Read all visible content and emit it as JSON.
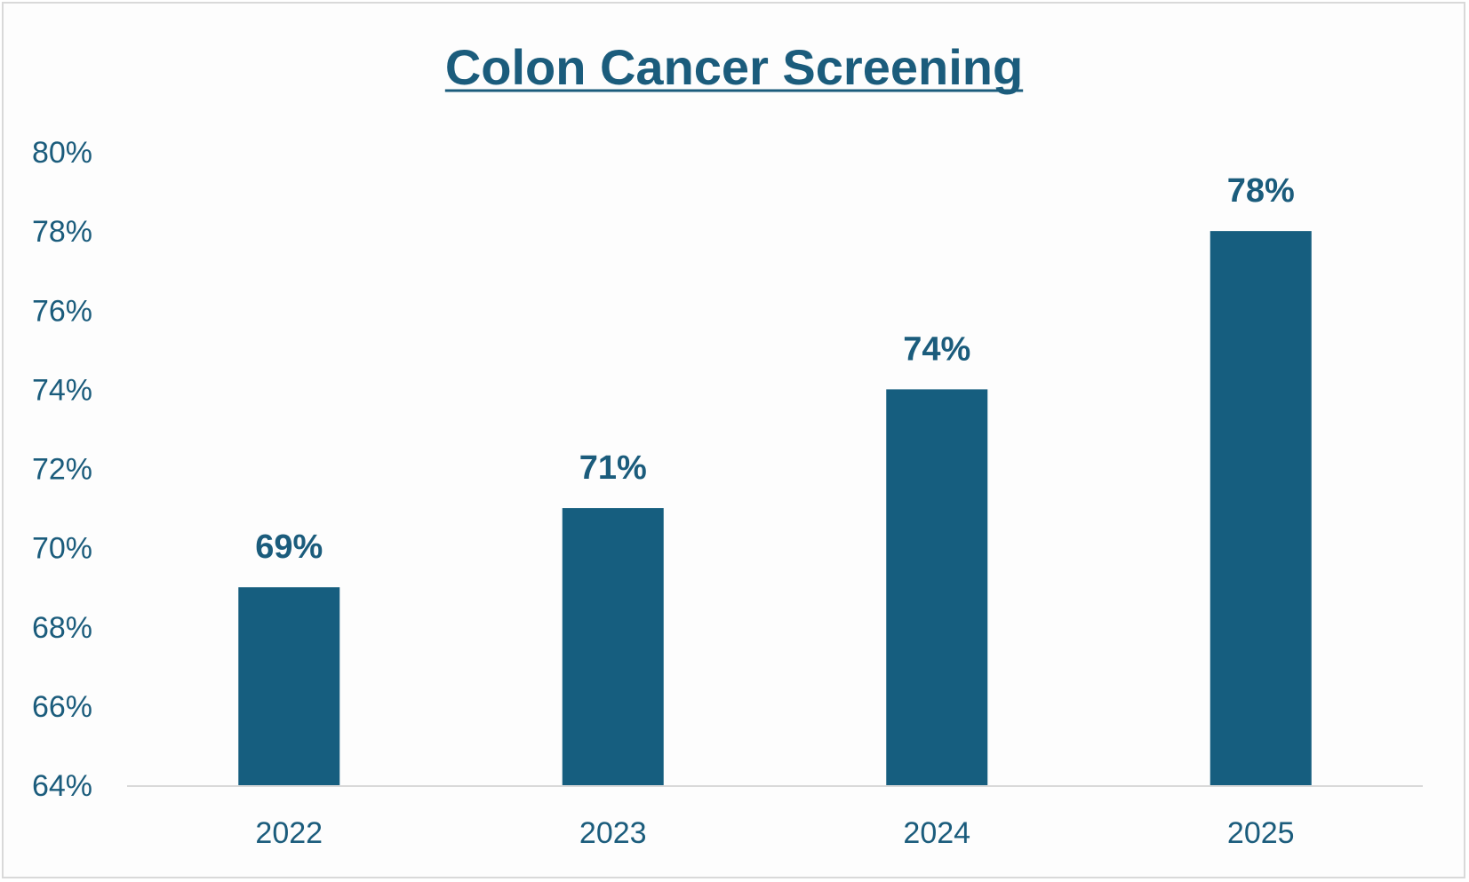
{
  "chart_data": {
    "type": "bar",
    "title": "Colon Cancer Screening",
    "title_underlined": true,
    "categories": [
      "2022",
      "2023",
      "2024",
      "2025"
    ],
    "values": [
      69,
      71,
      74,
      78
    ],
    "data_labels": [
      "69%",
      "71%",
      "74%",
      "78%"
    ],
    "y_tick_labels": [
      "64%",
      "66%",
      "68%",
      "70%",
      "72%",
      "74%",
      "76%",
      "78%",
      "80%"
    ],
    "y_ticks": [
      64,
      66,
      68,
      70,
      72,
      74,
      76,
      78,
      80
    ],
    "ylim": [
      64,
      80
    ],
    "xlabel": "",
    "ylabel": "",
    "grid": false,
    "legend": "none"
  },
  "colors": {
    "bar": "#165E7F",
    "text": "#1B5C7C",
    "axis": "#d9d9d9",
    "border": "#d9d9d9"
  }
}
